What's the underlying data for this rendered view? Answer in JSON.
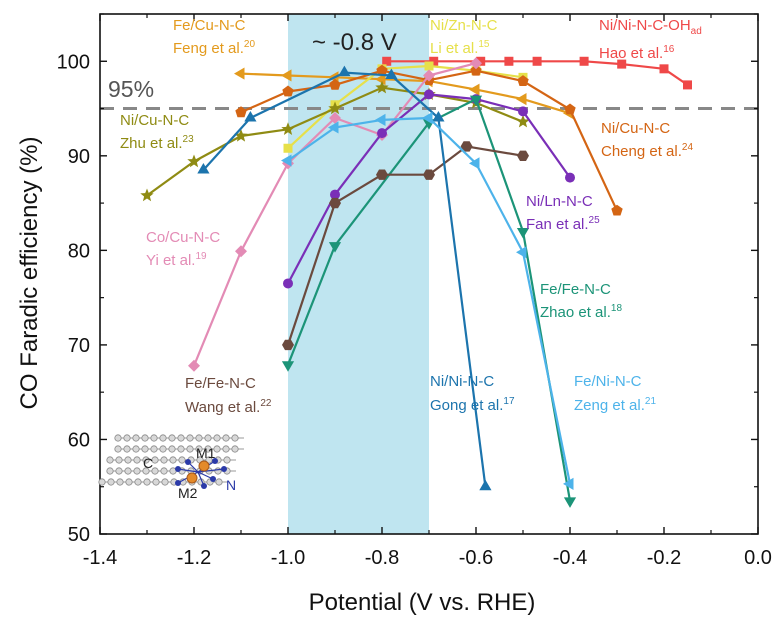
{
  "chart_data": {
    "type": "line",
    "xlabel": "Potential (V vs. RHE)",
    "ylabel": "CO Faradic efficiency (%)",
    "xlim": [
      -1.4,
      0.0
    ],
    "ylim": [
      50,
      105
    ],
    "xticks": [
      "-1.4",
      "-1.2",
      "-1.0",
      "-0.8",
      "-0.6",
      "-0.4",
      "-0.2",
      "0.0"
    ],
    "xtick_values": [
      -1.4,
      -1.2,
      -1.0,
      -0.8,
      -0.6,
      -0.4,
      -0.2,
      0.0
    ],
    "yticks": [
      "50",
      "60",
      "70",
      "80",
      "90",
      "100"
    ],
    "ytick_values": [
      50,
      60,
      70,
      80,
      90,
      100
    ],
    "highlight_band": {
      "x_range": [
        -1.0,
        -0.7
      ],
      "label": "~ -0.8 V",
      "color": "#bfe5f0"
    },
    "reference_line": {
      "y": 95,
      "label": "95%",
      "color": "#888888"
    },
    "inset": {
      "labels": [
        "C",
        "M1",
        "M2",
        "N"
      ]
    },
    "series": [
      {
        "name": "Ni/Ni-N-C-OHad",
        "ref": "Hao et al.16",
        "color": "#ef4848",
        "marker": "square",
        "x": [
          -0.79,
          -0.69,
          -0.59,
          -0.53,
          -0.47,
          -0.37,
          -0.29,
          -0.2,
          -0.15
        ],
        "y": [
          100,
          100,
          100,
          100,
          100,
          100,
          99.7,
          99.2,
          97.5
        ]
      },
      {
        "name": "Fe/Cu-N-C",
        "ref": "Feng et al.20",
        "color": "#e39a1d",
        "marker": "triangle-left",
        "x": [
          -1.1,
          -1.0,
          -0.9,
          -0.8,
          -0.7,
          -0.6,
          -0.5,
          -0.4
        ],
        "y": [
          98.7,
          98.5,
          98.3,
          98.1,
          97.9,
          97.0,
          96.0,
          94.5
        ]
      },
      {
        "name": "Ni/Zn-N-C",
        "ref": "Li et al.15",
        "color": "#e6e04a",
        "marker": "square",
        "x": [
          -1.0,
          -0.9,
          -0.8,
          -0.7,
          -0.6,
          -0.5
        ],
        "y": [
          90.8,
          95.4,
          99.2,
          99.5,
          99.0,
          98.3
        ]
      },
      {
        "name": "Ni/Cu-N-C",
        "ref": "Cheng et al.24",
        "color": "#d46514",
        "marker": "pentagon",
        "x": [
          -1.1,
          -1.0,
          -0.9,
          -0.8,
          -0.7,
          -0.6,
          -0.5,
          -0.4,
          -0.3
        ],
        "y": [
          94.6,
          96.8,
          97.5,
          99.0,
          98.0,
          99.0,
          97.9,
          94.9,
          84.2
        ]
      },
      {
        "name": "Ni/Cu-N-C",
        "ref": "Zhu et al.23",
        "color": "#8f8b13",
        "marker": "star",
        "x": [
          -1.3,
          -1.2,
          -1.1,
          -1.0,
          -0.9,
          -0.8,
          -0.7,
          -0.6,
          -0.5
        ],
        "y": [
          85.8,
          89.4,
          92.1,
          92.8,
          95.0,
          97.2,
          96.5,
          95.6,
          93.6
        ]
      },
      {
        "name": "Co/Cu-N-C",
        "ref": "Yi et al.19",
        "color": "#e38bb5",
        "marker": "diamond",
        "x": [
          -1.2,
          -1.1,
          -1.0,
          -0.9,
          -0.8,
          -0.7,
          -0.6
        ],
        "y": [
          67.8,
          79.9,
          89.2,
          94.0,
          92.2,
          98.5,
          99.8
        ]
      },
      {
        "name": "Ni/Ln-N-C",
        "ref": "Fan et al.25",
        "color": "#7a2fb7",
        "marker": "circle",
        "x": [
          -1.0,
          -0.9,
          -0.8,
          -0.7,
          -0.6,
          -0.5,
          -0.4
        ],
        "y": [
          76.5,
          85.9,
          92.4,
          96.5,
          96.0,
          94.7,
          87.7
        ]
      },
      {
        "name": "Fe/Fe-N-C",
        "ref": "Zhao et al.18",
        "color": "#1c9478",
        "marker": "triangle-down",
        "x": [
          -1.0,
          -0.9,
          -0.7,
          -0.6,
          -0.5,
          -0.4
        ],
        "y": [
          67.9,
          80.5,
          93.5,
          96.0,
          82.0,
          53.5
        ]
      },
      {
        "name": "Fe/Fe-N-C",
        "ref": "Wang et al.22",
        "color": "#6b4a3e",
        "marker": "hexagon",
        "x": [
          -1.0,
          -0.9,
          -0.8,
          -0.7,
          -0.62,
          -0.5
        ],
        "y": [
          70.0,
          85.0,
          88.0,
          88.0,
          91.0,
          90.0
        ]
      },
      {
        "name": "Ni/Ni-N-C",
        "ref": "Gong et al.17",
        "color": "#1c74ad",
        "marker": "triangle-up",
        "x": [
          -1.18,
          -1.08,
          -0.88,
          -0.78,
          -0.68,
          -0.58
        ],
        "y": [
          88.5,
          94.0,
          98.8,
          98.5,
          94.0,
          55.0
        ]
      },
      {
        "name": "Fe/Ni-N-C",
        "ref": "Zeng et al.21",
        "color": "#4db3ea",
        "marker": "triangle-left",
        "x": [
          -1.0,
          -0.9,
          -0.8,
          -0.7,
          -0.6,
          -0.5,
          -0.4
        ],
        "y": [
          89.5,
          93.0,
          93.8,
          94.0,
          89.2,
          79.8,
          55.3
        ]
      }
    ]
  },
  "labels": {
    "hao_name": "Ni/Ni-N-C-OH",
    "hao_sub": "ad",
    "hao_ref": "Hao et al.",
    "hao_sup": "16",
    "feng_name": "Fe/Cu-N-C",
    "feng_ref": "Feng et al.",
    "feng_sup": "20",
    "li_name": "Ni/Zn-N-C",
    "li_ref": "Li et al.",
    "li_sup": "15",
    "zhu_name": "Ni/Cu-N-C",
    "zhu_ref": "Zhu et al.",
    "zhu_sup": "23",
    "cheng_name": "Ni/Cu-N-C",
    "cheng_ref": "Cheng et al.",
    "cheng_sup": "24",
    "yi_name": "Co/Cu-N-C",
    "yi_ref": "Yi et al.",
    "yi_sup": "19",
    "fan_name": "Ni/Ln-N-C",
    "fan_ref": "Fan et al.",
    "fan_sup": "25",
    "zhao_name": "Fe/Fe-N-C",
    "zhao_ref": "Zhao et al.",
    "zhao_sup": "18",
    "wang_name": "Fe/Fe-N-C",
    "wang_ref": "Wang et al.",
    "wang_sup": "22",
    "gong_name": "Ni/Ni-N-C",
    "gong_ref": "Gong et al.",
    "gong_sup": "17",
    "zeng_name": "Fe/Ni-N-C",
    "zeng_ref": "Zeng et al.",
    "zeng_sup": "21"
  }
}
